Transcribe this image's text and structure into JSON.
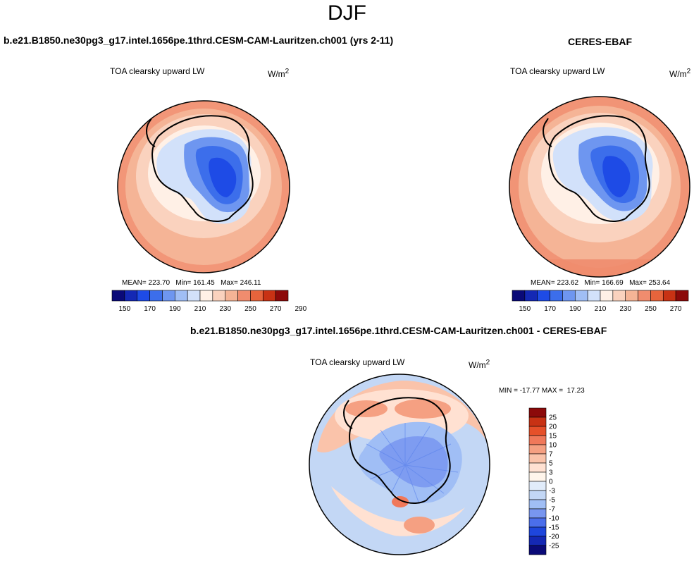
{
  "main_title": "DJF",
  "panels": {
    "model": {
      "header": "b.e21.B1850.ne30pg3_g17.intel.1656pe.1thrd.CESM-CAM-Lauritzen.ch001 (yrs 2-11)",
      "field_label": "TOA clearsky upward LW",
      "units_base": "W/m",
      "units_exp": "2",
      "stats": "MEAN= 223.70   Min= 161.45   Max= 246.11"
    },
    "obs": {
      "header": "CERES-EBAF",
      "field_label": "TOA clearsky upward LW",
      "units_base": "W/m",
      "units_exp": "2",
      "stats": "MEAN= 223.62   Min= 166.69   Max= 253.64"
    },
    "diff": {
      "header": "b.e21.B1850.ne30pg3_g17.intel.1656pe.1thrd.CESM-CAM-Lauritzen.ch001 - CERES-EBAF",
      "field_label": "TOA clearsky upward LW",
      "units_base": "W/m",
      "units_exp": "2",
      "stats": "MIN = -17.77 MAX =  17.23"
    }
  },
  "colorbar_abs": {
    "colors": [
      "#0a0a78",
      "#1428b4",
      "#1e4be6",
      "#3c6eeb",
      "#6e96f0",
      "#a0bef5",
      "#d2e1fa",
      "#fff0e6",
      "#fad2be",
      "#f5b496",
      "#f08c6e",
      "#e6643c",
      "#c83214",
      "#8c0a0a"
    ],
    "tick_labels": [
      "150",
      "170",
      "190",
      "210",
      "230",
      "250",
      "270",
      "290"
    ]
  },
  "colorbar_diff": {
    "colors": [
      "#8c0a0a",
      "#c83214",
      "#e6502a",
      "#f0785a",
      "#f5a082",
      "#fac3aa",
      "#ffe1d2",
      "#fff5eb",
      "#e1ecfa",
      "#c3d7f5",
      "#a0bef5",
      "#7896f0",
      "#4b6eeb",
      "#1e46dc",
      "#1428b4",
      "#0a0a78"
    ],
    "tick_labels": [
      "25",
      "20",
      "15",
      "10",
      "7",
      "5",
      "3",
      "0",
      "-3",
      "-5",
      "-7",
      "-10",
      "-15",
      "-20",
      "-25"
    ]
  }
}
